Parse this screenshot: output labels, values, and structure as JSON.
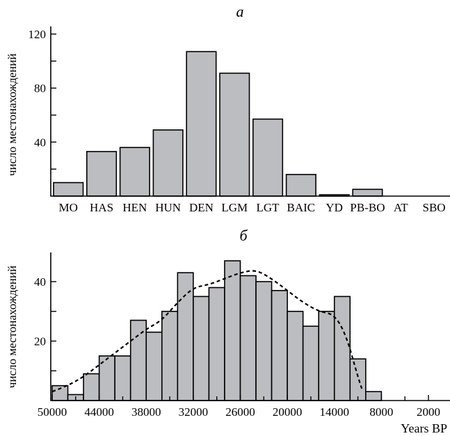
{
  "chart_data": [
    {
      "type": "bar",
      "panel_label": "а",
      "ylabel": "число местонахождений",
      "ylim": [
        0,
        125
      ],
      "yticks": [
        40,
        80,
        120
      ],
      "categories": [
        "MO",
        "HAS",
        "HEN",
        "HUN",
        "DEN",
        "LGM",
        "LGT",
        "BAIC",
        "YD",
        "PB-BO",
        "AT",
        "SBO"
      ],
      "values": [
        10,
        33,
        36,
        49,
        107,
        91,
        57,
        16,
        1,
        5,
        0,
        0
      ]
    },
    {
      "type": "bar",
      "panel_label": "б",
      "ylabel": "число местонахождений",
      "xlabel": "Years BP",
      "ylim": [
        0,
        50
      ],
      "yticks": [
        20,
        40
      ],
      "xlim": [
        50000,
        0
      ],
      "xtick_labels": [
        "50000",
        "44000",
        "38000",
        "32000",
        "26000",
        "20000",
        "14000",
        "8000",
        "2000"
      ],
      "xtick_values": [
        50000,
        44000,
        38000,
        32000,
        26000,
        20000,
        14000,
        8000,
        2000
      ],
      "minor_xticks": [
        47000,
        41000,
        35000,
        29000,
        23000,
        17000,
        11000,
        5000
      ],
      "bin_width": 2000,
      "bin_starts": [
        50000,
        48000,
        46000,
        44000,
        42000,
        40000,
        38000,
        36000,
        34000,
        32000,
        30000,
        28000,
        26000,
        24000,
        22000,
        20000,
        18000,
        16000,
        14000,
        12000,
        10000
      ],
      "values": [
        5,
        2,
        9,
        15,
        15,
        27,
        23,
        30,
        43,
        35,
        38,
        47,
        42,
        40,
        37,
        30,
        25,
        30,
        35,
        14,
        3
      ],
      "trend_line": {
        "style": "dashed",
        "x": [
          50000,
          48000,
          46000,
          44000,
          42000,
          40000,
          38000,
          36000,
          34000,
          32000,
          30000,
          28000,
          26000,
          24000,
          22000,
          20000,
          18000,
          16000,
          14000,
          12500,
          11000,
          10500
        ],
        "y": [
          3,
          5,
          8,
          12,
          16,
          20,
          24,
          27,
          33,
          38,
          39,
          41,
          43,
          44,
          41,
          37,
          33,
          30,
          29,
          22,
          8,
          4
        ]
      }
    }
  ]
}
